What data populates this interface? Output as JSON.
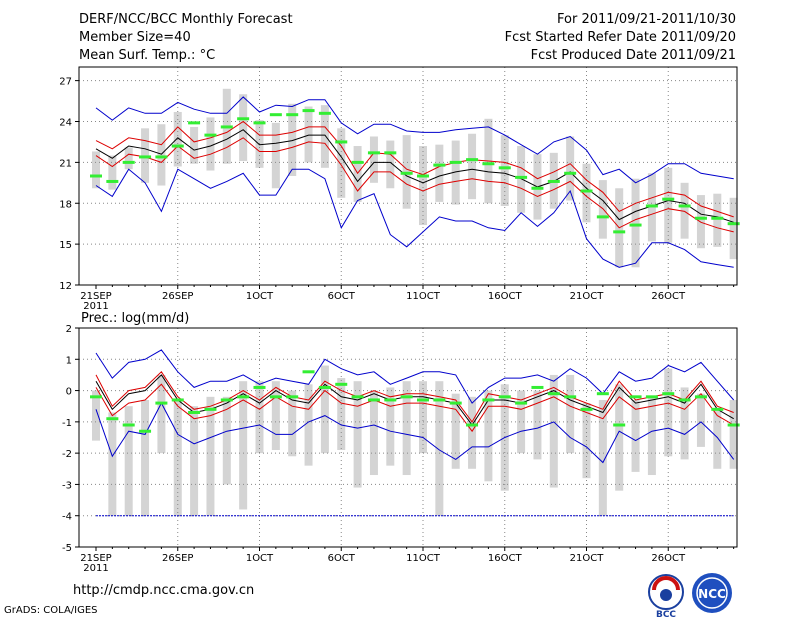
{
  "header": {
    "title": "DERF/NCC/BCC Monthly Forecast",
    "member_size": "Member Size=40",
    "variable": "Mean Surf. Temp.: °C",
    "forecast_period": "For 2011/09/21-2011/10/30",
    "refer_date": "Fcst Started Refer Date 2011/09/20",
    "produced_date": "Fcst Produced Date 2011/09/21"
  },
  "footer": {
    "url": "http://cmdp.ncc.cma.gov.cn",
    "grads": "GrADS: COLA/IGES",
    "logo1_text": "BCC",
    "logo2_text": "NCC"
  },
  "colors": {
    "envelope": "#0000cc",
    "spread": "#dd0000",
    "mean": "#000000",
    "median": "#33ee33",
    "box": "#d4d4d4",
    "floor": "#0000cc"
  },
  "chart_data": [
    {
      "type": "line",
      "title": "Mean Surf. Temp.: °C",
      "ylim": [
        12,
        28
      ],
      "yticks": [
        "12",
        "15",
        "18",
        "21",
        "24",
        "27"
      ],
      "xticks": [
        "21SEP",
        "26SEP",
        "1OCT",
        "6OCT",
        "11OCT",
        "16OCT",
        "21OCT",
        "26OCT"
      ],
      "year_label": "2011",
      "x_days": 40,
      "grid": true,
      "series": [
        {
          "name": "max",
          "values": [
            25.0,
            24.1,
            25.0,
            24.6,
            24.6,
            25.4,
            24.9,
            24.6,
            24.6,
            25.8,
            24.7,
            25.2,
            25.1,
            25.6,
            25.6,
            23.9,
            23.1,
            23.8,
            23.8,
            23.3,
            23.2,
            23.2,
            23.4,
            23.5,
            23.6,
            23.0,
            22.3,
            21.6,
            22.5,
            22.9,
            21.9,
            20.1,
            20.5,
            19.5,
            20.1,
            20.9,
            20.9,
            20.2,
            20.0,
            19.8
          ]
        },
        {
          "name": "upper",
          "values": [
            22.6,
            22.0,
            22.8,
            22.6,
            22.3,
            23.6,
            22.5,
            22.8,
            23.2,
            24.0,
            23.0,
            23.0,
            23.2,
            23.6,
            23.6,
            22.2,
            20.2,
            21.7,
            21.6,
            20.5,
            20.1,
            20.7,
            21.0,
            21.2,
            21.1,
            21.0,
            20.6,
            19.8,
            20.3,
            20.9,
            19.7,
            18.8,
            17.4,
            18.0,
            18.4,
            18.8,
            18.6,
            17.8,
            17.4,
            17.0
          ]
        },
        {
          "name": "mean",
          "values": [
            22.0,
            21.3,
            22.2,
            22.0,
            21.6,
            22.8,
            21.9,
            22.2,
            22.7,
            23.4,
            22.3,
            22.4,
            22.6,
            23.0,
            23.0,
            21.4,
            19.6,
            21.0,
            21.0,
            20.0,
            19.5,
            20.0,
            20.3,
            20.5,
            20.3,
            20.2,
            19.8,
            19.2,
            19.6,
            20.3,
            19.1,
            18.2,
            16.8,
            17.4,
            17.8,
            18.2,
            18.0,
            17.2,
            17.0,
            16.6
          ]
        },
        {
          "name": "lower",
          "values": [
            21.5,
            20.7,
            21.6,
            21.4,
            21.0,
            22.2,
            21.3,
            21.6,
            22.1,
            22.8,
            21.8,
            21.8,
            22.1,
            22.5,
            22.4,
            20.8,
            18.9,
            20.3,
            20.3,
            19.4,
            18.9,
            19.4,
            19.6,
            19.8,
            19.6,
            19.5,
            19.1,
            18.5,
            19.0,
            19.6,
            18.5,
            17.6,
            16.2,
            16.8,
            17.2,
            17.6,
            17.4,
            16.6,
            16.2,
            15.9
          ]
        },
        {
          "name": "min",
          "values": [
            19.3,
            18.5,
            20.5,
            19.5,
            17.4,
            20.5,
            19.8,
            19.1,
            19.6,
            20.2,
            18.6,
            18.6,
            20.5,
            20.5,
            19.8,
            16.2,
            18.2,
            18.7,
            15.7,
            14.8,
            15.9,
            17.0,
            16.7,
            16.7,
            16.2,
            16.0,
            17.3,
            16.3,
            17.3,
            18.9,
            15.4,
            13.9,
            13.3,
            13.6,
            15.1,
            15.1,
            14.6,
            13.7,
            13.5,
            13.3
          ]
        },
        {
          "name": "median",
          "values": [
            20.0,
            19.6,
            21.0,
            21.4,
            21.4,
            22.2,
            23.9,
            23.0,
            23.6,
            24.2,
            23.9,
            24.5,
            24.5,
            24.8,
            24.6,
            22.5,
            21.0,
            21.7,
            21.7,
            20.2,
            20.0,
            20.8,
            21.0,
            21.2,
            20.9,
            20.6,
            19.9,
            19.1,
            19.6,
            20.2,
            18.9,
            17.0,
            15.9,
            16.4,
            17.8,
            18.3,
            17.8,
            16.9,
            16.9,
            16.5
          ]
        },
        {
          "name": "box_low",
          "values": [
            19.1,
            19.0,
            20.5,
            19.5,
            19.3,
            20.7,
            20.9,
            20.4,
            20.9,
            21.1,
            20.6,
            19.1,
            20.0,
            21.0,
            20.6,
            18.4,
            18.1,
            19.5,
            19.1,
            17.6,
            16.4,
            18.1,
            17.9,
            18.3,
            18.0,
            17.8,
            17.3,
            16.8,
            17.6,
            18.2,
            16.6,
            15.4,
            13.3,
            13.3,
            15.2,
            15.1,
            15.4,
            14.7,
            14.8,
            13.9
          ]
        },
        {
          "name": "box_high",
          "values": [
            21.8,
            21.5,
            22.1,
            23.5,
            23.8,
            24.7,
            23.6,
            24.3,
            26.4,
            26.0,
            24.1,
            23.9,
            25.3,
            25.1,
            25.2,
            23.5,
            22.2,
            22.9,
            22.6,
            23.0,
            22.2,
            22.3,
            22.6,
            23.1,
            24.2,
            23.0,
            22.2,
            21.6,
            21.7,
            22.9,
            20.9,
            19.7,
            19.1,
            19.8,
            20.2,
            20.6,
            19.5,
            18.6,
            18.7,
            18.4
          ]
        }
      ]
    },
    {
      "type": "line",
      "title": "Prec.: log(mm/d)",
      "ylim": [
        -5,
        2
      ],
      "yticks": [
        "-5",
        "-4",
        "-3",
        "-2",
        "-1",
        "0",
        "1",
        "2"
      ],
      "xticks": [
        "21SEP",
        "26SEP",
        "1OCT",
        "6OCT",
        "11OCT",
        "16OCT",
        "21OCT",
        "26OCT"
      ],
      "year_label": "2011",
      "x_days": 40,
      "grid": true,
      "floor_value": -4,
      "series": [
        {
          "name": "max",
          "values": [
            1.2,
            0.4,
            0.9,
            1.0,
            1.3,
            0.6,
            0.1,
            0.3,
            0.3,
            0.5,
            0.2,
            0.4,
            0.3,
            0.2,
            1.0,
            0.7,
            0.5,
            0.6,
            0.2,
            0.4,
            0.6,
            0.6,
            0.5,
            -0.4,
            0.1,
            0.4,
            0.4,
            0.5,
            0.3,
            0.7,
            0.4,
            -0.1,
            0.6,
            0.3,
            0.4,
            0.8,
            0.6,
            0.9,
            0.3,
            -0.3
          ]
        },
        {
          "name": "upper",
          "values": [
            0.5,
            -0.5,
            0.0,
            0.1,
            0.6,
            -0.2,
            -0.6,
            -0.5,
            -0.3,
            0.0,
            -0.3,
            0.1,
            -0.2,
            -0.3,
            0.3,
            0.0,
            -0.2,
            0.0,
            -0.2,
            -0.1,
            -0.1,
            -0.2,
            -0.3,
            -1.0,
            -0.1,
            -0.2,
            -0.3,
            -0.1,
            0.1,
            -0.2,
            -0.4,
            -0.6,
            0.3,
            -0.3,
            -0.2,
            -0.1,
            -0.3,
            0.3,
            -0.5,
            -0.7
          ]
        },
        {
          "name": "mean",
          "values": [
            0.3,
            -0.6,
            -0.1,
            0.0,
            0.5,
            -0.3,
            -0.7,
            -0.6,
            -0.4,
            -0.1,
            -0.4,
            0.0,
            -0.3,
            -0.4,
            0.2,
            -0.2,
            -0.3,
            -0.1,
            -0.3,
            -0.2,
            -0.2,
            -0.3,
            -0.4,
            -1.1,
            -0.3,
            -0.3,
            -0.4,
            -0.2,
            0.0,
            -0.3,
            -0.5,
            -0.7,
            0.1,
            -0.4,
            -0.3,
            -0.2,
            -0.4,
            0.2,
            -0.6,
            -0.9
          ]
        },
        {
          "name": "lower",
          "values": [
            0.1,
            -0.8,
            -0.4,
            -0.3,
            0.2,
            -0.5,
            -0.9,
            -0.8,
            -0.6,
            -0.3,
            -0.6,
            -0.2,
            -0.5,
            -0.6,
            0.0,
            -0.4,
            -0.5,
            -0.3,
            -0.5,
            -0.4,
            -0.4,
            -0.5,
            -0.6,
            -1.3,
            -0.5,
            -0.5,
            -0.6,
            -0.4,
            -0.2,
            -0.5,
            -0.7,
            -0.9,
            -0.2,
            -0.6,
            -0.5,
            -0.4,
            -0.6,
            -0.1,
            -0.8,
            -1.1
          ]
        },
        {
          "name": "min",
          "values": [
            -0.6,
            -2.1,
            -1.3,
            -1.4,
            -0.4,
            -1.4,
            -1.7,
            -1.5,
            -1.3,
            -1.2,
            -1.1,
            -1.4,
            -1.4,
            -1.0,
            -0.8,
            -1.1,
            -1.2,
            -1.1,
            -1.3,
            -1.4,
            -1.5,
            -1.9,
            -2.2,
            -1.8,
            -1.8,
            -1.5,
            -1.3,
            -1.2,
            -1.0,
            -1.5,
            -1.8,
            -2.3,
            -1.3,
            -1.6,
            -1.3,
            -1.2,
            -1.4,
            -1.0,
            -1.5,
            -2.2
          ]
        },
        {
          "name": "median",
          "values": [
            -0.2,
            -0.9,
            -1.1,
            -1.3,
            -0.4,
            -0.3,
            -0.7,
            -0.6,
            -0.3,
            -0.2,
            0.1,
            -0.2,
            -0.2,
            0.6,
            0.1,
            0.2,
            -0.2,
            -0.3,
            -0.3,
            -0.2,
            -0.3,
            -0.3,
            -0.4,
            -1.1,
            -0.3,
            -0.2,
            -0.4,
            0.1,
            -0.1,
            -0.2,
            -0.6,
            -0.1,
            -1.1,
            -0.2,
            -0.2,
            -0.1,
            -0.3,
            -0.2,
            -0.6,
            -1.1
          ]
        },
        {
          "name": "box_low",
          "values": [
            -1.6,
            -4.0,
            -4.0,
            -4.0,
            -2.0,
            -4.0,
            -4.0,
            -4.0,
            -3.0,
            -3.8,
            -2.0,
            -1.9,
            -2.1,
            -2.4,
            -2.0,
            -1.9,
            -3.1,
            -2.7,
            -2.4,
            -2.7,
            -2.0,
            -4.0,
            -2.5,
            -2.5,
            -2.9,
            -3.2,
            -2.0,
            -2.2,
            -3.1,
            -2.0,
            -2.8,
            -4.0,
            -3.2,
            -2.6,
            -2.7,
            -2.1,
            -2.2,
            -1.8,
            -2.5,
            -2.5
          ]
        },
        {
          "name": "box_high",
          "values": [
            0.0,
            -0.7,
            -0.5,
            -0.3,
            0.5,
            -0.3,
            -0.5,
            -0.2,
            -0.2,
            0.3,
            0.3,
            0.3,
            0.0,
            0.2,
            0.8,
            0.4,
            0.3,
            0.0,
            0.1,
            0.3,
            0.3,
            0.3,
            -0.1,
            -0.2,
            0.0,
            0.2,
            0.0,
            0.0,
            0.5,
            0.5,
            -0.4,
            -0.3,
            0.2,
            -0.3,
            -0.2,
            0.7,
            0.1,
            -0.1,
            -0.6,
            -0.3
          ]
        }
      ]
    }
  ]
}
